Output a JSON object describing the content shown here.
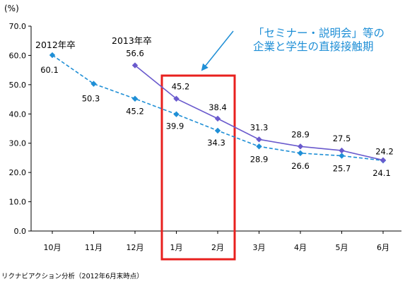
{
  "chart_data": {
    "type": "line",
    "unit_label": "(%)",
    "categories": [
      "10月",
      "11月",
      "12月",
      "1月",
      "2月",
      "3月",
      "4月",
      "5月",
      "6月"
    ],
    "ylim": [
      0,
      70
    ],
    "yticks": [
      "0.0",
      "10.0",
      "20.0",
      "30.0",
      "40.0",
      "50.0",
      "60.0",
      "70.0"
    ],
    "grid": false,
    "series": [
      {
        "name": "2012年卒",
        "style": "dashed",
        "color": "#1f8fd6",
        "values": [
          60.1,
          50.3,
          45.2,
          39.9,
          34.3,
          28.9,
          26.6,
          25.7,
          24.1
        ],
        "labels": [
          "60.1",
          "50.3",
          "45.2",
          "39.9",
          "34.3",
          "28.9",
          "26.6",
          "25.7",
          "24.1"
        ]
      },
      {
        "name": "2013年卒",
        "style": "solid",
        "color": "#6a5acd",
        "values": [
          null,
          null,
          56.6,
          45.2,
          38.4,
          31.3,
          28.9,
          27.5,
          24.2
        ],
        "labels": [
          null,
          null,
          "56.6",
          "45.2",
          "38.4",
          "31.3",
          "28.9",
          "27.5",
          "24.2"
        ]
      }
    ],
    "annotation": {
      "line1": "「セミナー・説明会」等の",
      "line2": "企業と学生の直接接触期",
      "highlight_categories": [
        "1月",
        "2月"
      ],
      "highlight_color": "#e8201e"
    },
    "source": "リクナビアクション分析（2012年6月末時点）"
  }
}
